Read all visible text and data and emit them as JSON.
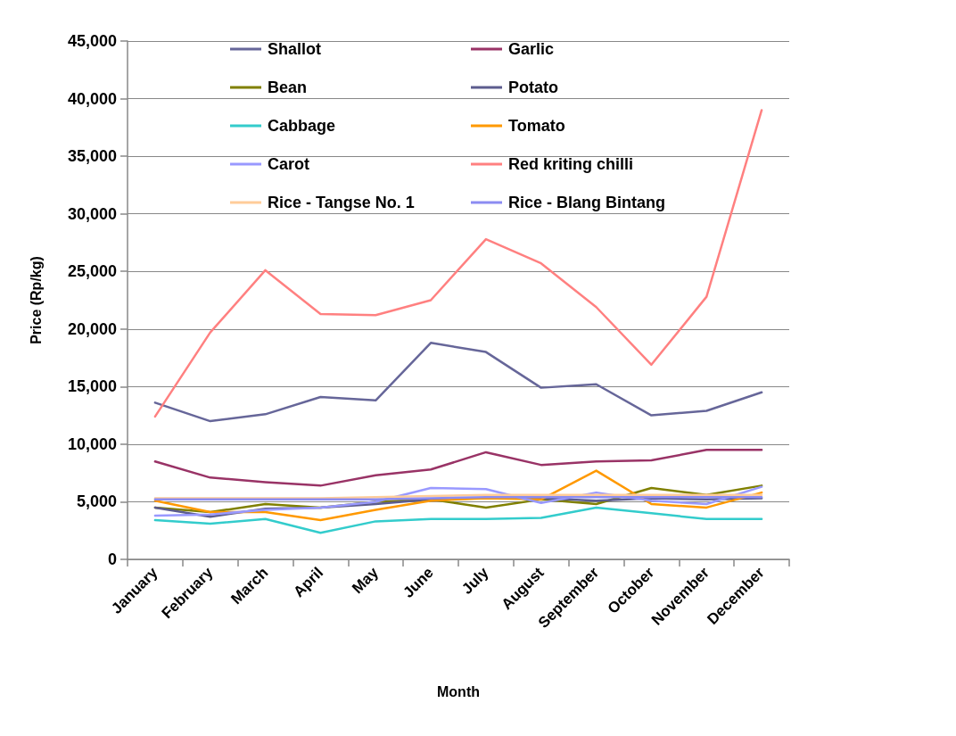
{
  "chart_data": {
    "type": "line",
    "xlabel": "Month",
    "ylabel": "Price (Rp/kg)",
    "categories": [
      "January",
      "February",
      "March",
      "April",
      "May",
      "June",
      "July",
      "August",
      "September",
      "October",
      "November",
      "December"
    ],
    "series": [
      {
        "name": "Shallot",
        "color": "#666699",
        "values": [
          13600,
          12000,
          12600,
          14100,
          13800,
          18800,
          18000,
          14900,
          15200,
          12500,
          12900,
          14500
        ]
      },
      {
        "name": "Garlic",
        "color": "#993366",
        "values": [
          8500,
          7100,
          6700,
          6400,
          7300,
          7800,
          9300,
          8200,
          8500,
          8600,
          9500,
          9500
        ]
      },
      {
        "name": "Bean",
        "color": "#808000",
        "values": [
          4500,
          4100,
          4800,
          4500,
          5000,
          5200,
          4500,
          5200,
          4800,
          6200,
          5600,
          6400
        ]
      },
      {
        "name": "Potato",
        "color": "#5c5c8e",
        "values": [
          4500,
          3700,
          4400,
          4500,
          4800,
          5200,
          5300,
          5300,
          5100,
          5300,
          5200,
          5300
        ]
      },
      {
        "name": "Cabbage",
        "color": "#33cccc",
        "values": [
          3400,
          3100,
          3500,
          2300,
          3300,
          3500,
          3500,
          3600,
          4500,
          4000,
          3500,
          3500
        ]
      },
      {
        "name": "Tomato",
        "color": "#ff9900",
        "values": [
          5100,
          4100,
          4100,
          3400,
          4300,
          5100,
          5300,
          5200,
          7700,
          4800,
          4500,
          5800
        ]
      },
      {
        "name": "Carot",
        "color": "#9999ff",
        "values": [
          3800,
          3900,
          4300,
          4500,
          5000,
          6200,
          6100,
          4900,
          5800,
          5100,
          4800,
          6300
        ]
      },
      {
        "name": "Red kriting chilli",
        "color": "#ff8080",
        "values": [
          12400,
          19700,
          25100,
          21300,
          21200,
          22500,
          27800,
          25700,
          21900,
          16900,
          22800,
          39000
        ]
      },
      {
        "name": "Rice - Tangse No. 1",
        "color": "#ffcc99",
        "values": [
          5300,
          5300,
          5300,
          5300,
          5400,
          5500,
          5600,
          5600,
          5600,
          5600,
          5600,
          5600
        ]
      },
      {
        "name": "Rice - Blang Bintang",
        "color": "#8c8cf2",
        "values": [
          5200,
          5200,
          5200,
          5200,
          5200,
          5300,
          5400,
          5400,
          5400,
          5400,
          5400,
          5400
        ]
      }
    ],
    "ylim": [
      0,
      45000
    ],
    "yticks": [
      0,
      {
        "value": 5000,
        "label": "5,000"
      },
      {
        "value": 10000,
        "label": "10,000"
      },
      {
        "value": 15000,
        "label": "15,000"
      },
      {
        "value": 20000,
        "label": "20,000"
      },
      {
        "value": 25000,
        "label": "25,000"
      },
      {
        "value": 30000,
        "label": "30,000"
      },
      {
        "value": 35000,
        "label": "35,000"
      },
      {
        "value": 40000,
        "label": "40,000"
      },
      {
        "value": 45000,
        "label": "45,000"
      }
    ],
    "grid": "y",
    "legend": "top",
    "marker": "none",
    "line_style": "solid"
  }
}
